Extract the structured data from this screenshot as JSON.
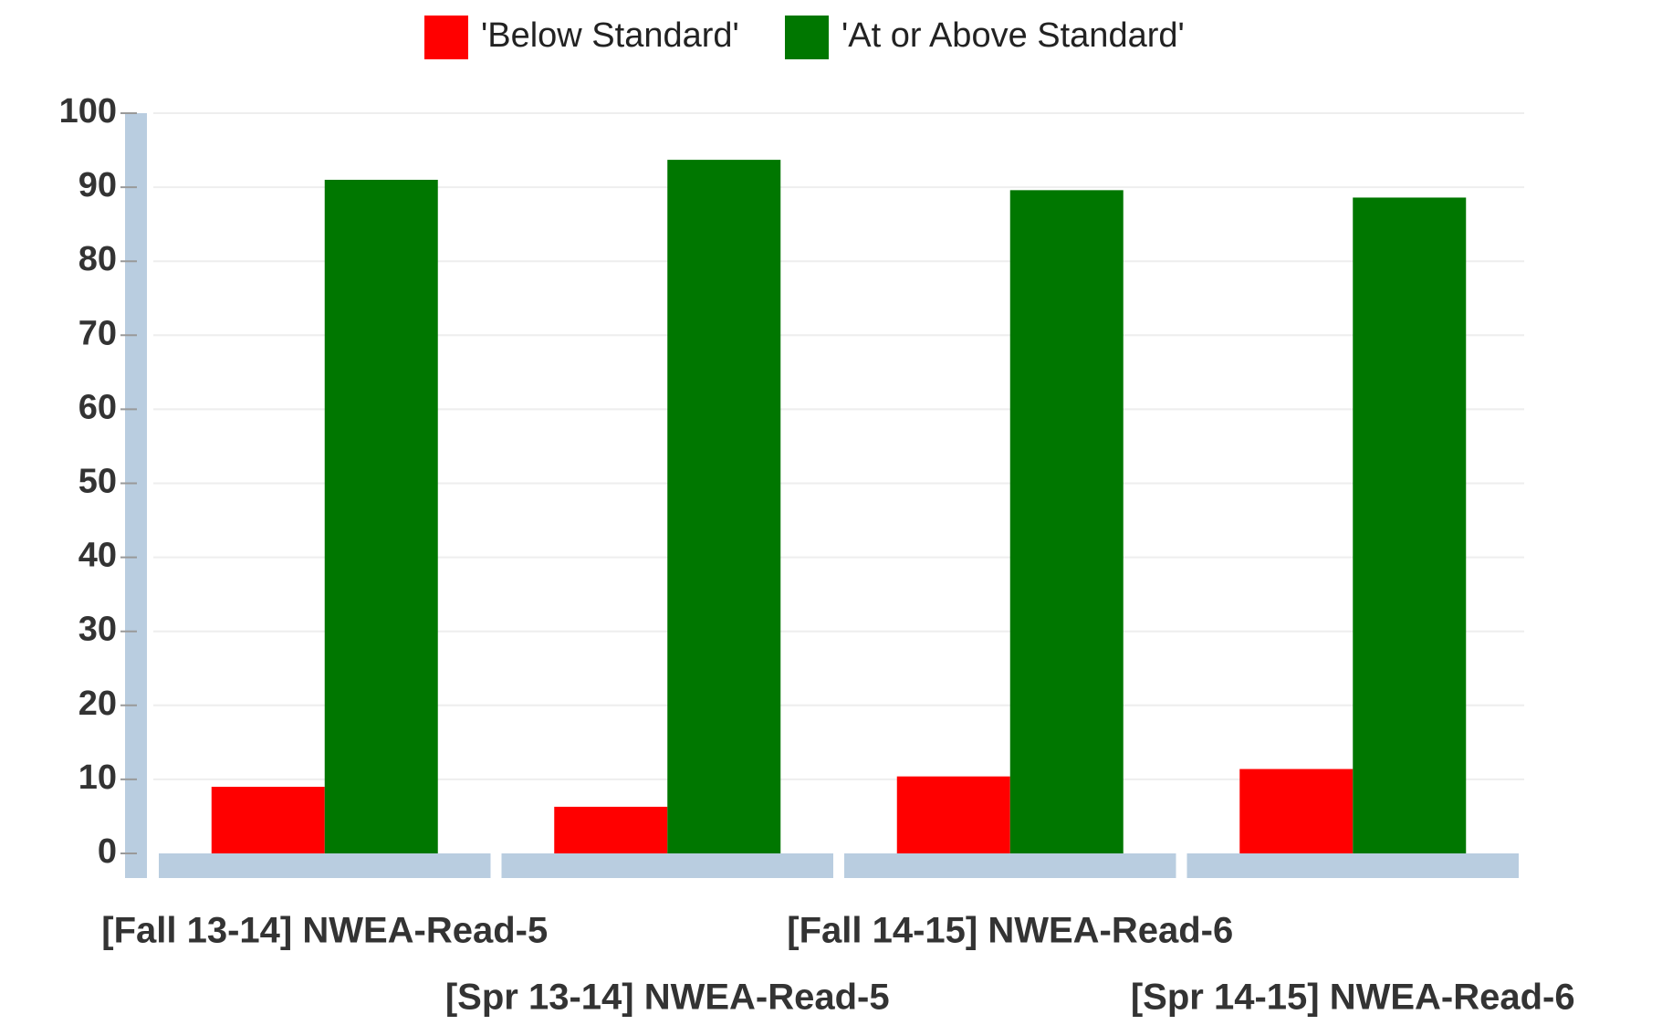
{
  "chart_data": {
    "type": "bar",
    "categories": [
      "[Fall 13-14] NWEA-Read-5",
      "[Spr 13-14] NWEA-Read-5",
      "[Fall 14-15] NWEA-Read-6",
      "[Spr 14-15] NWEA-Read-6"
    ],
    "series": [
      {
        "name": "'Below Standard'",
        "color": "#ff0000",
        "values": [
          9,
          6.3,
          10.4,
          11.4
        ]
      },
      {
        "name": "'At or Above Standard'",
        "color": "#007700",
        "values": [
          91,
          93.7,
          89.6,
          88.6
        ]
      }
    ],
    "ylim": [
      0,
      100
    ],
    "yticks": [
      0,
      10,
      20,
      30,
      40,
      50,
      60,
      70,
      80,
      90,
      100
    ],
    "grid": true
  }
}
